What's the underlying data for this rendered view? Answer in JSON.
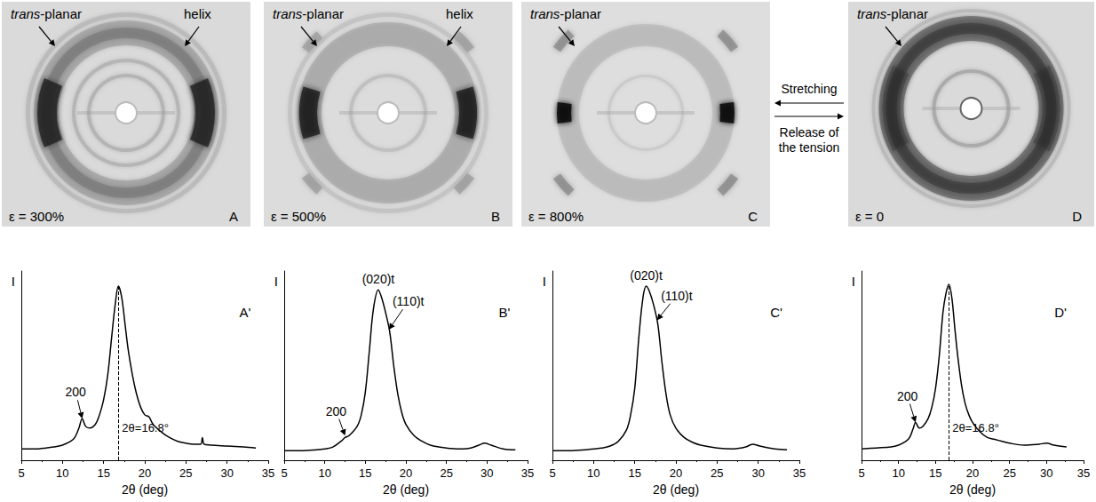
{
  "chart_data": [
    {
      "type": "line",
      "panel": "A'",
      "xlabel": "2θ (deg)",
      "ylabel": "I",
      "color": "#000000",
      "xlim": [
        5,
        35
      ],
      "xticks": [
        5,
        10,
        15,
        20,
        25,
        30,
        35
      ],
      "ylim": [
        0,
        100
      ],
      "tick_labels": "x",
      "grid": false,
      "x": [
        5,
        6,
        7,
        8,
        9,
        10,
        11,
        11.5,
        12,
        12.4,
        12.8,
        13.3,
        14,
        14.5,
        15,
        15.5,
        16,
        16.4,
        16.8,
        17.2,
        17.6,
        18,
        18.5,
        19,
        19.5,
        20,
        20.5,
        21,
        22,
        23,
        24,
        25,
        26,
        26.8,
        27,
        27.2,
        28,
        30,
        32,
        33.5
      ],
      "values": [
        6,
        6,
        6,
        6.5,
        7,
        8,
        10,
        12,
        17,
        22,
        18,
        17,
        19,
        24,
        32,
        45,
        66,
        82,
        92,
        86,
        72,
        58,
        45,
        35,
        28,
        24,
        23,
        19,
        15,
        12,
        10,
        9,
        8.5,
        8.5,
        12,
        8.5,
        8,
        7.5,
        7,
        6.5
      ],
      "annotations": [
        {
          "text": "200",
          "x": 12.4,
          "y": 22,
          "text_x": 11.6,
          "text_y": 36
        }
      ],
      "vline": {
        "x": 16.8,
        "y": 92,
        "label": "2θ=16.8°",
        "line_style": "dashed"
      }
    },
    {
      "type": "line",
      "panel": "B'",
      "xlabel": "2θ (deg)",
      "ylabel": "I",
      "color": "#000000",
      "xlim": [
        5,
        35
      ],
      "xticks": [
        5,
        10,
        15,
        20,
        25,
        30,
        35
      ],
      "ylim": [
        0,
        100
      ],
      "tick_labels": "x",
      "grid": false,
      "x": [
        5,
        7,
        9,
        10,
        11,
        12,
        12.5,
        13,
        14,
        14.5,
        15,
        15.5,
        16,
        16.6,
        17,
        17.5,
        18,
        18.5,
        19,
        19.5,
        20,
        21,
        22,
        23,
        25,
        27,
        28,
        29,
        29.7,
        30.5,
        32,
        33.5
      ],
      "values": [
        5,
        5,
        5.5,
        6,
        7,
        10,
        12,
        13,
        18,
        24,
        36,
        58,
        80,
        90,
        86,
        78,
        68,
        50,
        35,
        25,
        19,
        13,
        10,
        8,
        6.5,
        6,
        6.5,
        8,
        9,
        8,
        6,
        5.5
      ],
      "annotations": [
        {
          "text": "(020)t",
          "x": 16.6,
          "y": 90
        },
        {
          "text": "(110)t",
          "x": 17.9,
          "y": 69,
          "text_x": 20.3,
          "text_y": 84
        },
        {
          "text": "200",
          "x": 12.5,
          "y": 13,
          "text_x": 11.4,
          "text_y": 26
        }
      ]
    },
    {
      "type": "line",
      "panel": "C'",
      "xlabel": "2θ (deg)",
      "ylabel": "I",
      "color": "#000000",
      "xlim": [
        5,
        35
      ],
      "xticks": [
        5,
        10,
        15,
        20,
        25,
        30,
        35
      ],
      "ylim": [
        0,
        100
      ],
      "tick_labels": "x",
      "grid": false,
      "x": [
        5,
        7,
        9,
        10,
        11,
        12,
        13,
        14,
        14.5,
        15,
        15.5,
        16,
        16.4,
        16.8,
        17.3,
        17.8,
        18.3,
        18.8,
        19.3,
        20,
        21,
        22,
        23,
        25,
        27,
        28.5,
        29.3,
        30.2,
        32,
        33.5
      ],
      "values": [
        5,
        5,
        5.5,
        6,
        6.5,
        7.5,
        10,
        16,
        24,
        38,
        65,
        86,
        92,
        89,
        82,
        72,
        52,
        35,
        24,
        17,
        12,
        9.5,
        8,
        6.5,
        6,
        7,
        8.5,
        7.5,
        6,
        5.5
      ],
      "annotations": [
        {
          "text": "(020)t",
          "x": 16.4,
          "y": 92
        },
        {
          "text": "(110)t",
          "x": 17.7,
          "y": 74,
          "text_x": 20.1,
          "text_y": 87
        }
      ]
    },
    {
      "type": "line",
      "panel": "D'",
      "xlabel": "2θ (deg)",
      "ylabel": "I",
      "color": "#000000",
      "xlim": [
        5,
        35
      ],
      "xticks": [
        5,
        10,
        15,
        20,
        25,
        30,
        35
      ],
      "ylim": [
        0,
        100
      ],
      "tick_labels": "x",
      "grid": false,
      "x": [
        5,
        7,
        9,
        10,
        11,
        11.5,
        12,
        12.3,
        12.8,
        13.3,
        14,
        14.5,
        15,
        15.5,
        16,
        16.4,
        16.8,
        17.2,
        17.6,
        18,
        18.5,
        19,
        19.5,
        20,
        21,
        22,
        23,
        24,
        25,
        27,
        29,
        30,
        31,
        32.7
      ],
      "values": [
        6,
        6.5,
        7,
        8,
        10,
        12,
        17,
        20,
        17,
        18,
        22,
        28,
        38,
        55,
        78,
        88,
        93,
        86,
        70,
        55,
        40,
        30,
        24,
        20,
        15,
        12,
        11,
        10,
        9,
        8,
        8.5,
        9,
        8,
        7
      ],
      "annotations": [
        {
          "text": "200",
          "x": 12.3,
          "y": 20,
          "text_x": 11.2,
          "text_y": 34
        }
      ],
      "vline": {
        "x": 16.8,
        "y": 93,
        "label": "2θ=16.8°",
        "line_style": "dashed"
      }
    }
  ],
  "patterns": [
    {
      "panel": "A",
      "strain": "ε = 300%",
      "annotations": [
        "trans-planar",
        "helix"
      ]
    },
    {
      "panel": "B",
      "strain": "ε = 500%",
      "annotations": [
        "trans-planar",
        "helix"
      ]
    },
    {
      "panel": "C",
      "strain": "ε = 800%",
      "annotations": [
        "trans-planar"
      ]
    },
    {
      "panel": "D",
      "strain": "ε = 0",
      "annotations": [
        "trans-planar"
      ]
    }
  ],
  "transition": {
    "forward": "Stretching",
    "backward": "Release of the tension"
  }
}
